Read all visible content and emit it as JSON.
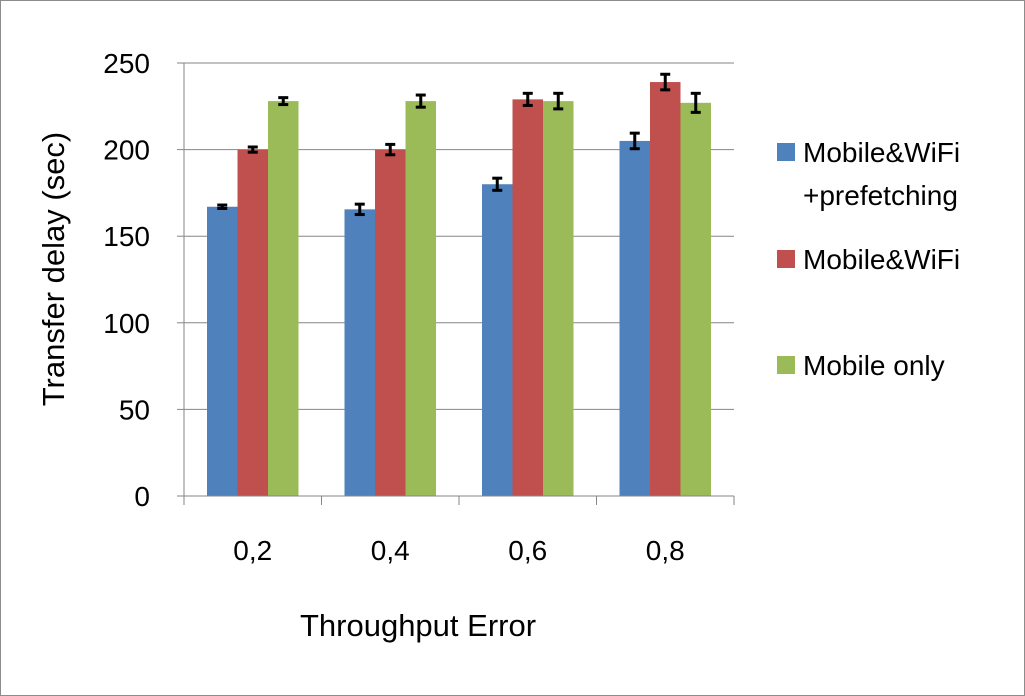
{
  "chart_data": {
    "type": "bar",
    "title": "",
    "xlabel": "Throughput Error",
    "ylabel": "Transfer delay (sec)",
    "categories": [
      "0,2",
      "0,4",
      "0,6",
      "0,8"
    ],
    "ylim": [
      0,
      250
    ],
    "yticks": [
      0,
      50,
      100,
      150,
      200,
      250
    ],
    "grid": true,
    "legend_position": "right",
    "series": [
      {
        "name": "Mobile&WiFi +prefetching",
        "legend_lines": [
          "Mobile&WiFi",
          "+prefetching"
        ],
        "color": "#4f81bd",
        "values": [
          167,
          165.5,
          180,
          205
        ],
        "errors": [
          1,
          3,
          3.5,
          4.5
        ]
      },
      {
        "name": "Mobile&WiFi",
        "legend_lines": [
          "Mobile&WiFi"
        ],
        "color": "#c0504d",
        "values": [
          200,
          200,
          229,
          239
        ],
        "errors": [
          1.5,
          3,
          3.5,
          4.5
        ]
      },
      {
        "name": "Mobile only",
        "legend_lines": [
          "Mobile only"
        ],
        "color": "#9bbb59",
        "values": [
          228,
          228,
          228,
          227
        ],
        "errors": [
          2,
          3.5,
          4.5,
          5.5
        ]
      }
    ]
  }
}
